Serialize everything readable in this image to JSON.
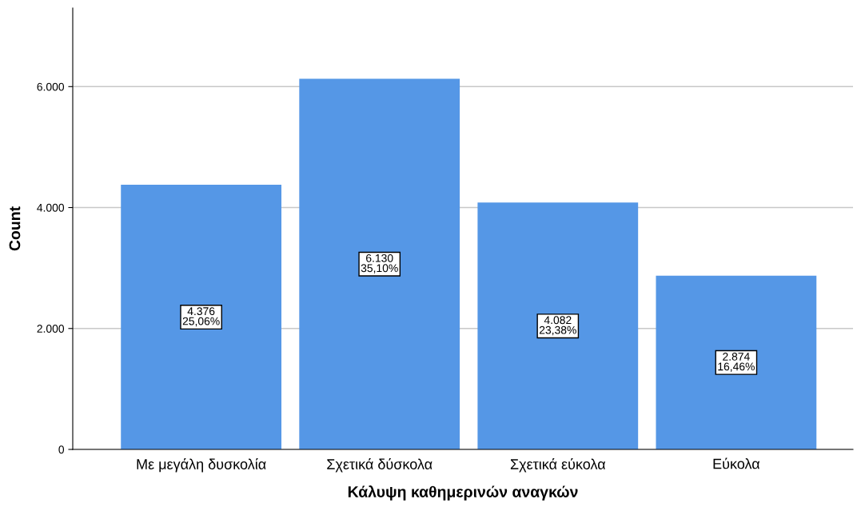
{
  "chart_data": {
    "type": "bar",
    "xlabel": "Κάλυψη καθημερινών αναγκών",
    "ylabel": "Count",
    "categories": [
      "Με μεγάλη δυσκολία",
      "Σχετικά δύσκολα",
      "Σχετικά εύκολα",
      "Εύκολα"
    ],
    "values": [
      4376,
      6130,
      4082,
      2874
    ],
    "value_labels": [
      "4.376\n25,06%",
      "6.130\n35,10%",
      "4.082\n23,38%",
      "2.874\n16,46%"
    ],
    "color": "#5597e6",
    "ylim": [
      0,
      7300
    ],
    "yticks": [
      {
        "value": 0,
        "label": "0"
      },
      {
        "value": 2000,
        "label": "2.000"
      },
      {
        "value": 4000,
        "label": "4.000"
      },
      {
        "value": 6000,
        "label": "6.000"
      }
    ],
    "grid": "y"
  }
}
